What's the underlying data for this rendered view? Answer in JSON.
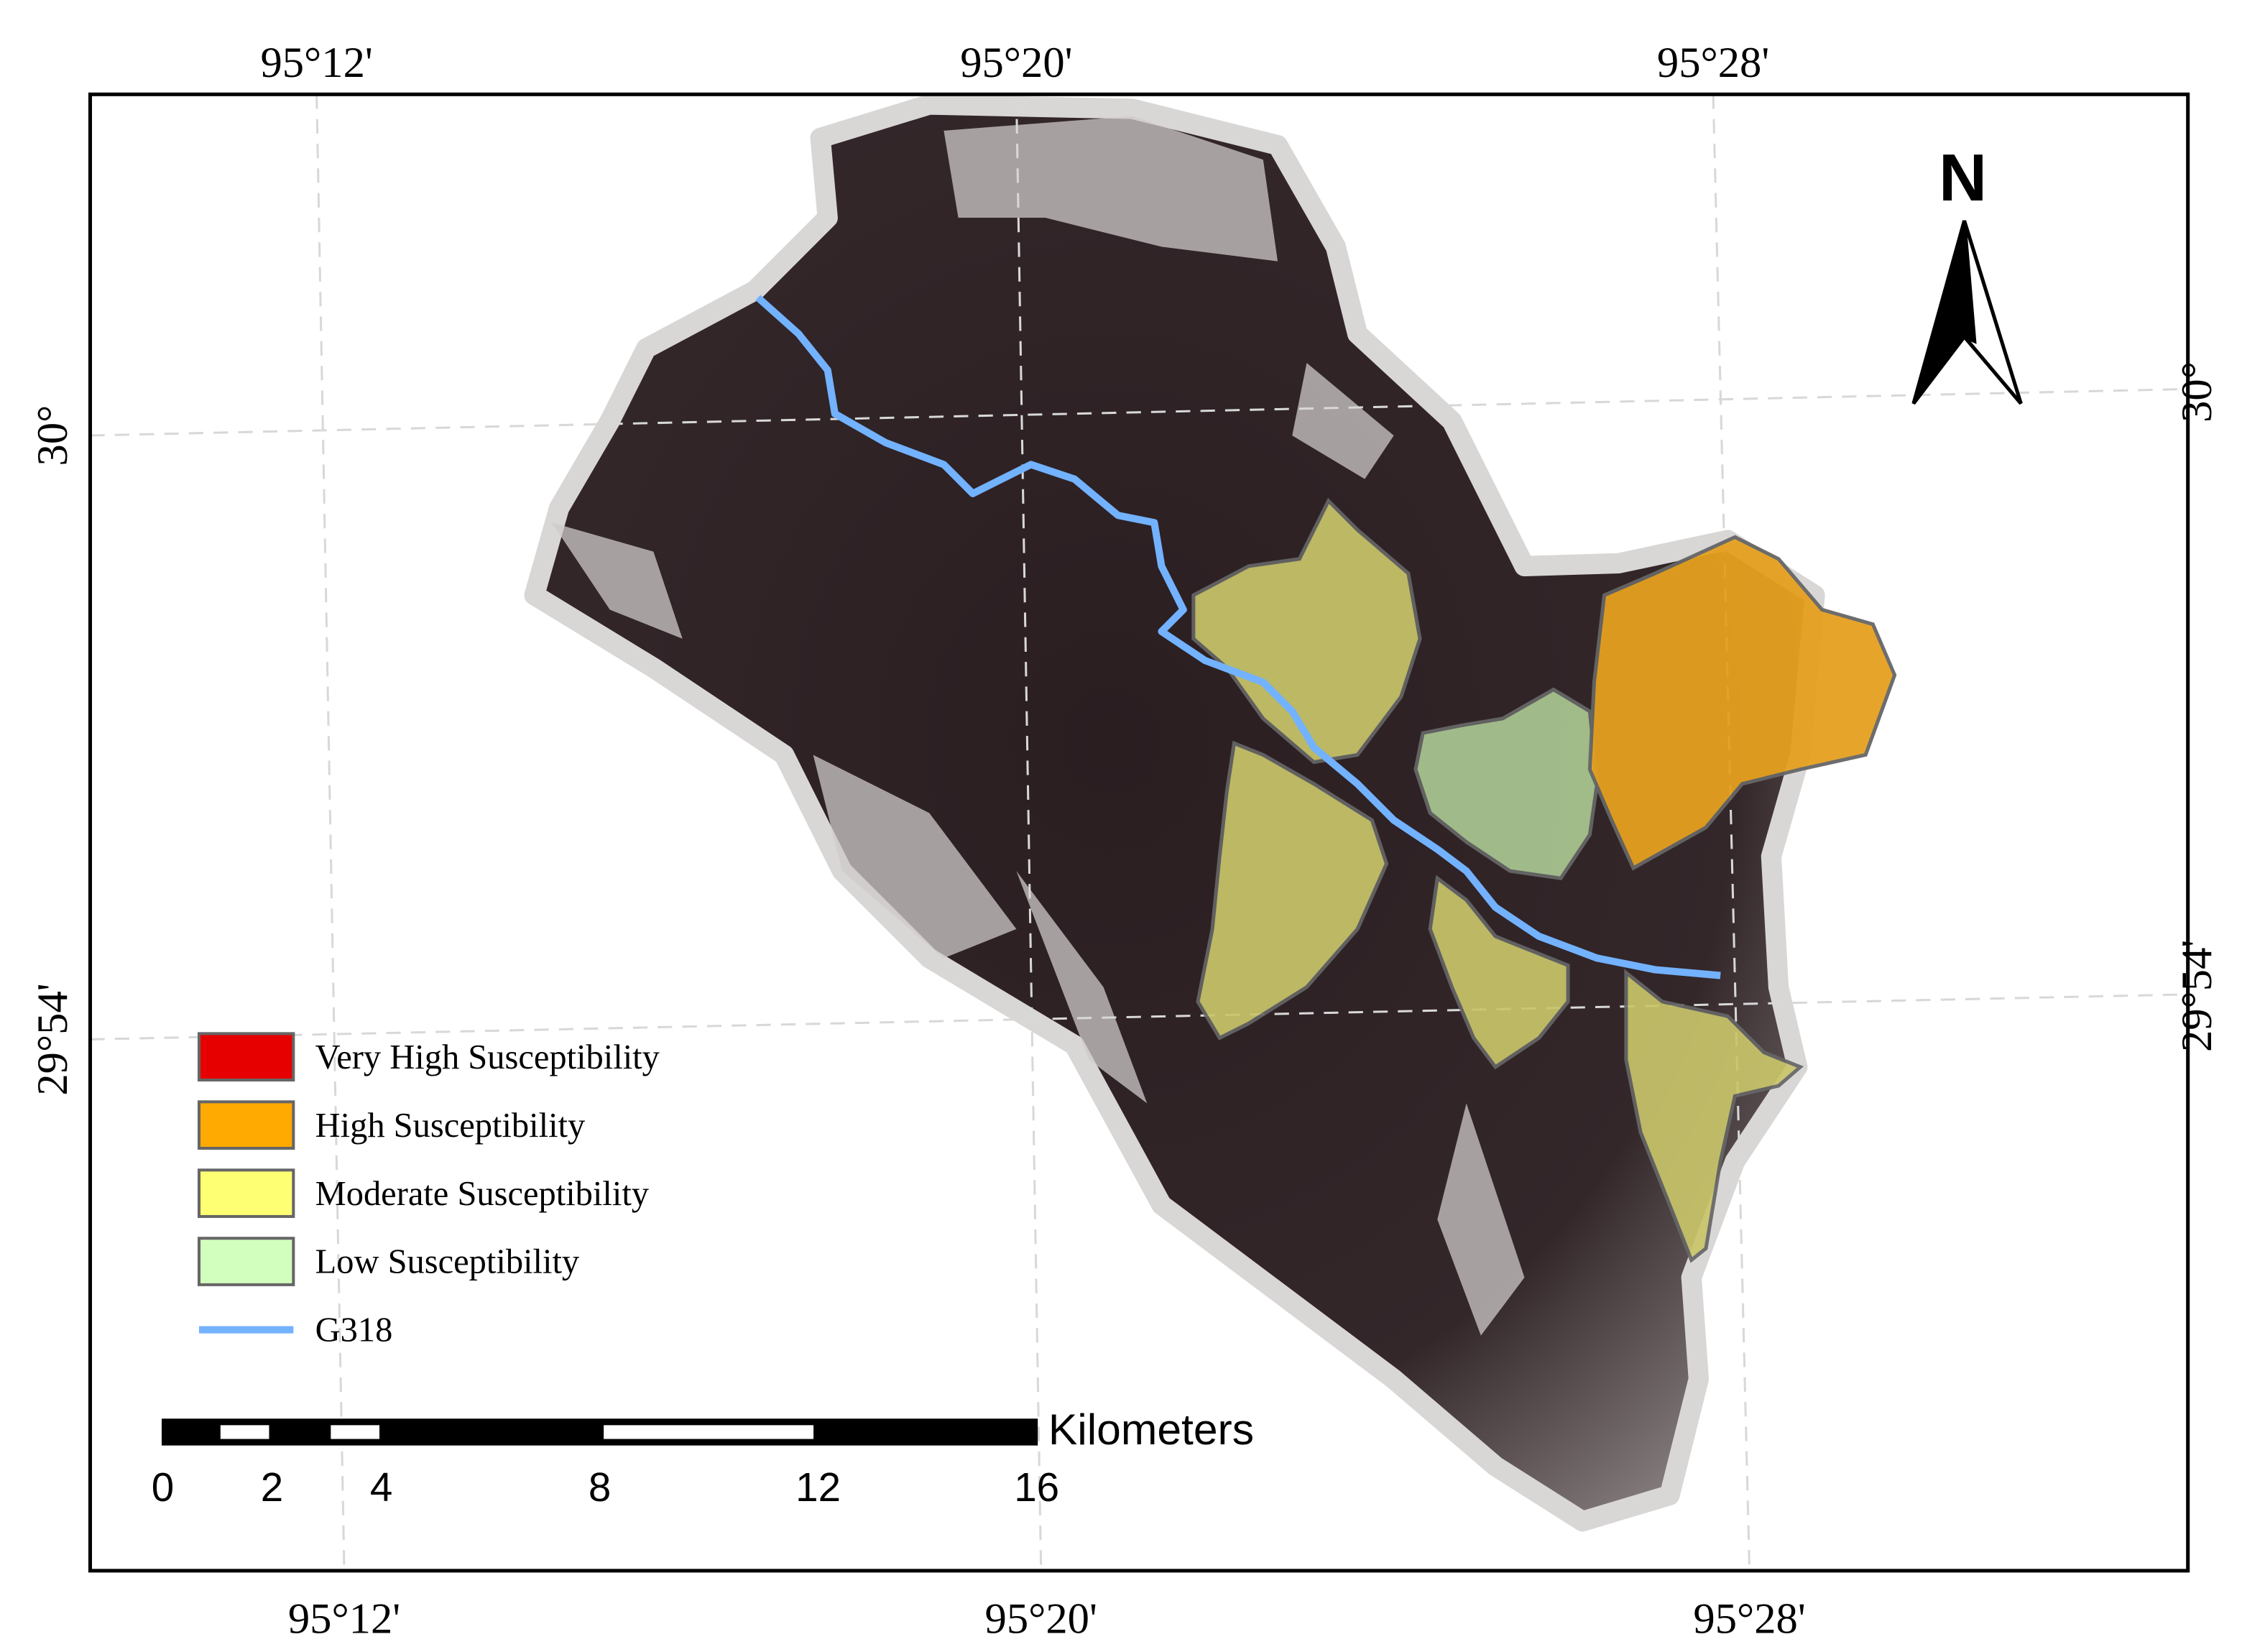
{
  "map": {
    "longitude_labels": [
      "95°12'",
      "95°20'",
      "95°28'"
    ],
    "latitude_labels": [
      "30°",
      "29°54'"
    ],
    "north": "N",
    "legend": [
      {
        "name": "Very High Susceptibility",
        "color": "#e60000"
      },
      {
        "name": "High Susceptibility",
        "color": "#ffaa00"
      },
      {
        "name": "Moderate Susceptibility",
        "color": "#ffff73"
      },
      {
        "name": "Low Susceptibility",
        "color": "#d3ffbe"
      },
      {
        "name": "G318",
        "color": "#73b2ff"
      }
    ],
    "scale_bar": {
      "unit": "Kilometers",
      "ticks": [
        0,
        2,
        4,
        8,
        12,
        16
      ]
    }
  }
}
